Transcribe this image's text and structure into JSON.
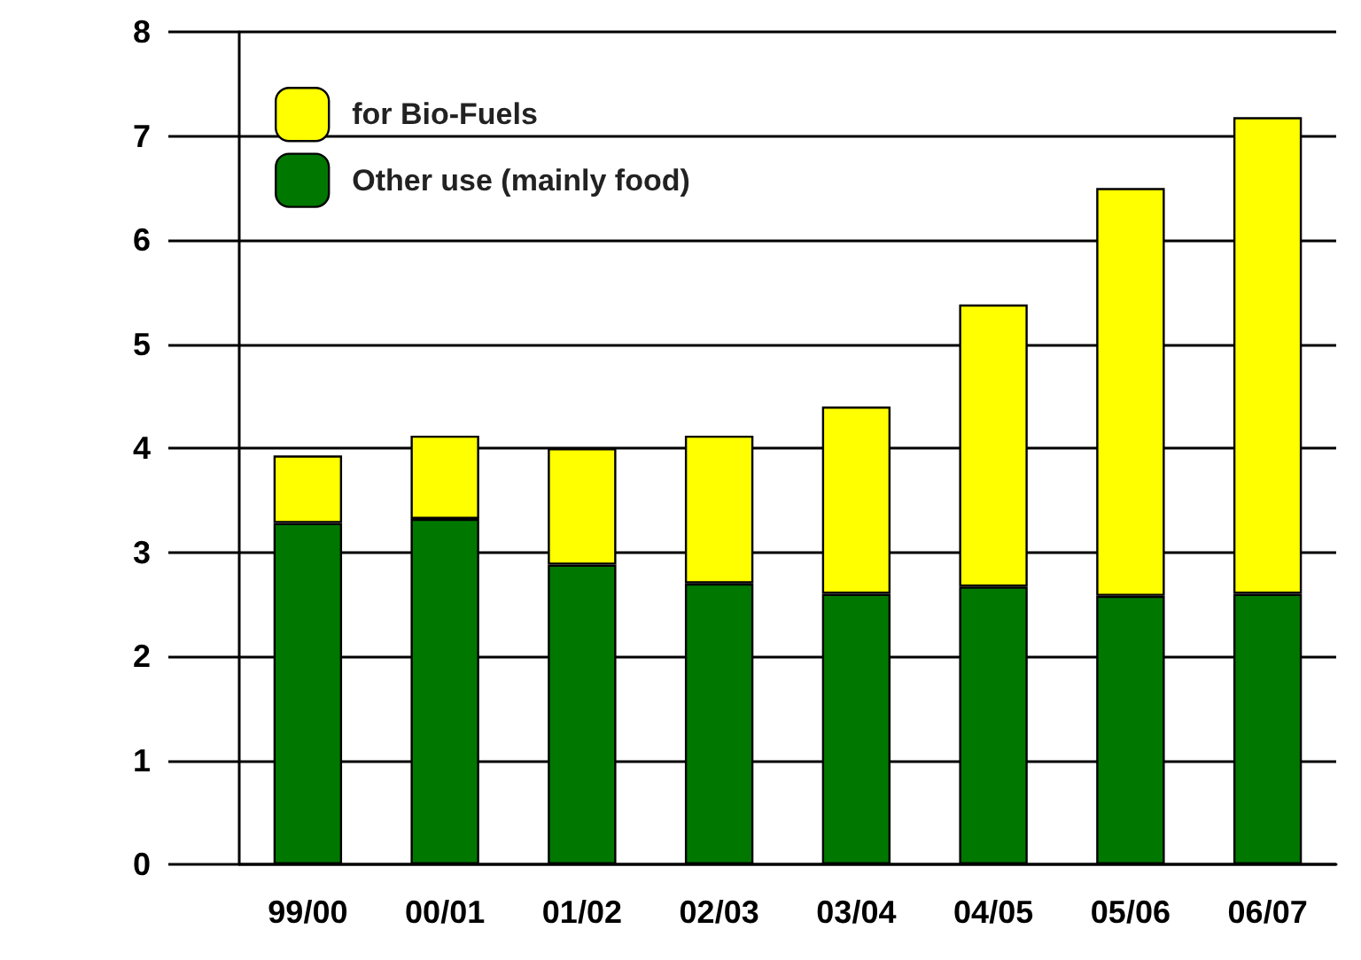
{
  "chart_data": {
    "type": "bar",
    "stacked": true,
    "categories": [
      "99/00",
      "00/01",
      "01/02",
      "02/03",
      "03/04",
      "04/05",
      "05/06",
      "06/07"
    ],
    "series": [
      {
        "name": "Other use (mainly food)",
        "color": "#007800",
        "values": [
          3.28,
          3.32,
          2.88,
          2.7,
          2.6,
          2.67,
          2.58,
          2.6
        ]
      },
      {
        "name": "for Bio-Fuels",
        "color": "#ffff00",
        "values": [
          0.65,
          0.8,
          1.12,
          1.42,
          1.8,
          2.71,
          3.92,
          4.58
        ]
      }
    ],
    "ylim": [
      0,
      8
    ],
    "yticks": [
      0,
      1,
      2,
      3,
      4,
      5,
      6,
      7,
      8
    ],
    "grid": "y",
    "legend": "top left"
  }
}
